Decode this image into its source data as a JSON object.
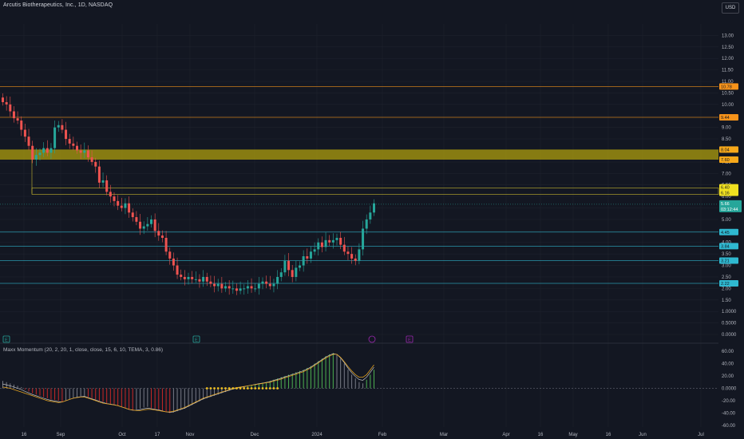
{
  "header": {
    "title": "Arcutis Biotherapeutics, Inc., 1D, NASDAQ",
    "currency": "USD"
  },
  "indicator": {
    "label": "Maxx Momentum (20, 2, 20, 1, close, close, 15, 6, 10, TEMA, 3, 0.86)"
  },
  "colors": {
    "background": "#131722",
    "grid": "#1e222d",
    "up": "#26a69a",
    "down": "#ef5350",
    "resistance": "#f7931a",
    "zone": "#b8a60c",
    "support": "#2fb8d0",
    "zero_dash": "#787b86"
  },
  "chart_data": {
    "type": "candlestick",
    "price_axis": {
      "min": 0,
      "max": 13.5,
      "ticks": [
        "13.00",
        "12.50",
        "12.00",
        "11.50",
        "11.00",
        "10.50",
        "10.00",
        "9.50",
        "9.00",
        "8.50",
        "8.00",
        "7.50",
        "7.00",
        "6.50",
        "6.00",
        "5.50",
        "5.00",
        "4.50",
        "4.00",
        "3.50",
        "3.00",
        "2.50",
        "2.00",
        "1.50",
        "1.0000",
        "0.5000",
        "0.0000"
      ]
    },
    "time_axis": {
      "labels": [
        "16",
        "Sep",
        "Oct",
        "17",
        "Nov",
        "Dec",
        "2024",
        "Feb",
        "Mar",
        "Apr",
        "16",
        "May",
        "16",
        "Jun",
        "Jul"
      ]
    },
    "levels": [
      {
        "value": "10.78",
        "kind": "resistance"
      },
      {
        "value": "9.44",
        "kind": "resistance"
      },
      {
        "value": "8.04",
        "kind": "zone"
      },
      {
        "value": "7.60",
        "kind": "zone"
      },
      {
        "value": "6.40",
        "kind": "yellow"
      },
      {
        "value": "6.16",
        "kind": "yellow"
      },
      {
        "value": "4.45",
        "kind": "support"
      },
      {
        "value": "3.84",
        "kind": "support"
      },
      {
        "value": "3.21",
        "kind": "support"
      },
      {
        "value": "2.22",
        "kind": "support"
      }
    ],
    "last_price": {
      "value": "5.66",
      "countdown": "03:12:44"
    },
    "closes": [
      10.1,
      10.0,
      9.7,
      9.4,
      9.3,
      8.9,
      8.6,
      8.2,
      7.6,
      7.8,
      7.9,
      8.1,
      7.9,
      8.1,
      9.0,
      9.1,
      8.9,
      8.5,
      8.3,
      8.2,
      8.0,
      7.9,
      8.0,
      7.7,
      7.5,
      7.3,
      6.6,
      6.7,
      6.2,
      6.0,
      5.8,
      5.6,
      5.5,
      5.7,
      5.3,
      5.1,
      4.9,
      4.6,
      4.7,
      4.8,
      5.0,
      4.5,
      4.3,
      4.2,
      3.6,
      3.3,
      3.0,
      2.6,
      2.5,
      2.4,
      2.5,
      2.4,
      2.4,
      2.3,
      2.5,
      2.3,
      2.2,
      2.1,
      2.2,
      2.0,
      2.1,
      2.0,
      2.0,
      1.9,
      2.0,
      2.0,
      2.1,
      2.0,
      2.0,
      2.2,
      2.3,
      2.2,
      2.1,
      2.2,
      2.5,
      2.7,
      3.2,
      2.8,
      2.5,
      2.9,
      3.0,
      3.4,
      3.3,
      3.6,
      3.7,
      4.0,
      3.8,
      4.1,
      4.0,
      4.1,
      4.2,
      3.9,
      3.6,
      3.5,
      3.3,
      3.2,
      3.7,
      4.6,
      5.0,
      5.3,
      5.7
    ],
    "momentum_axis": {
      "ticks": [
        "60.00",
        "40.00",
        "20.00",
        "0.0000",
        "-20.00",
        "-40.00",
        "-60.00"
      ],
      "min": -60,
      "max": 60
    },
    "momentum_hist": [
      12,
      10,
      8,
      6,
      4,
      2,
      -2,
      -5,
      -8,
      -10,
      -12,
      -14,
      -16,
      -18,
      -19,
      -20,
      -22,
      -20,
      -18,
      -16,
      -14,
      -13,
      -12,
      -14,
      -16,
      -18,
      -20,
      -22,
      -24,
      -25,
      -26,
      -28,
      -30,
      -32,
      -34,
      -36,
      -35,
      -33,
      -31,
      -30,
      -32,
      -33,
      -34,
      -36,
      -38,
      -40,
      -39,
      -37,
      -35,
      -33,
      -30,
      -27,
      -24,
      -21,
      -18,
      -16,
      -14,
      -12,
      -10,
      -8,
      -6,
      -4,
      -2,
      -1,
      1,
      2,
      4,
      5,
      7,
      8,
      9,
      10,
      12,
      14,
      16,
      18,
      20,
      22,
      24,
      26,
      28,
      30,
      33,
      36,
      40,
      44,
      48,
      52,
      55,
      57,
      55,
      48,
      40,
      30,
      22,
      16,
      10,
      8,
      14,
      22,
      30
    ],
    "signal_line": [
      2,
      1,
      0,
      -2,
      -4,
      -6,
      -8,
      -10,
      -12,
      -14,
      -16,
      -18,
      -20,
      -21,
      -22,
      -23,
      -22,
      -20,
      -18,
      -16,
      -15,
      -14,
      -14,
      -16,
      -18,
      -20,
      -22,
      -24,
      -25,
      -26,
      -27,
      -28,
      -30,
      -32,
      -34,
      -35,
      -36,
      -36,
      -35,
      -34,
      -34,
      -35,
      -36,
      -37,
      -38,
      -38,
      -37,
      -35,
      -33,
      -31,
      -28,
      -25,
      -22,
      -19,
      -16,
      -14,
      -12,
      -10,
      -8,
      -6,
      -4,
      -2,
      0,
      1,
      2,
      3,
      4,
      5,
      6,
      7,
      8,
      9,
      10,
      12,
      13,
      15,
      17,
      19,
      21,
      23,
      25,
      27,
      30,
      33,
      37,
      41,
      45,
      49,
      52,
      55,
      55,
      50,
      43,
      35,
      28,
      22,
      18,
      18,
      22,
      30,
      38
    ],
    "dot_range": [
      55,
      74
    ],
    "event_markers": [
      "E",
      "E",
      "E"
    ]
  }
}
